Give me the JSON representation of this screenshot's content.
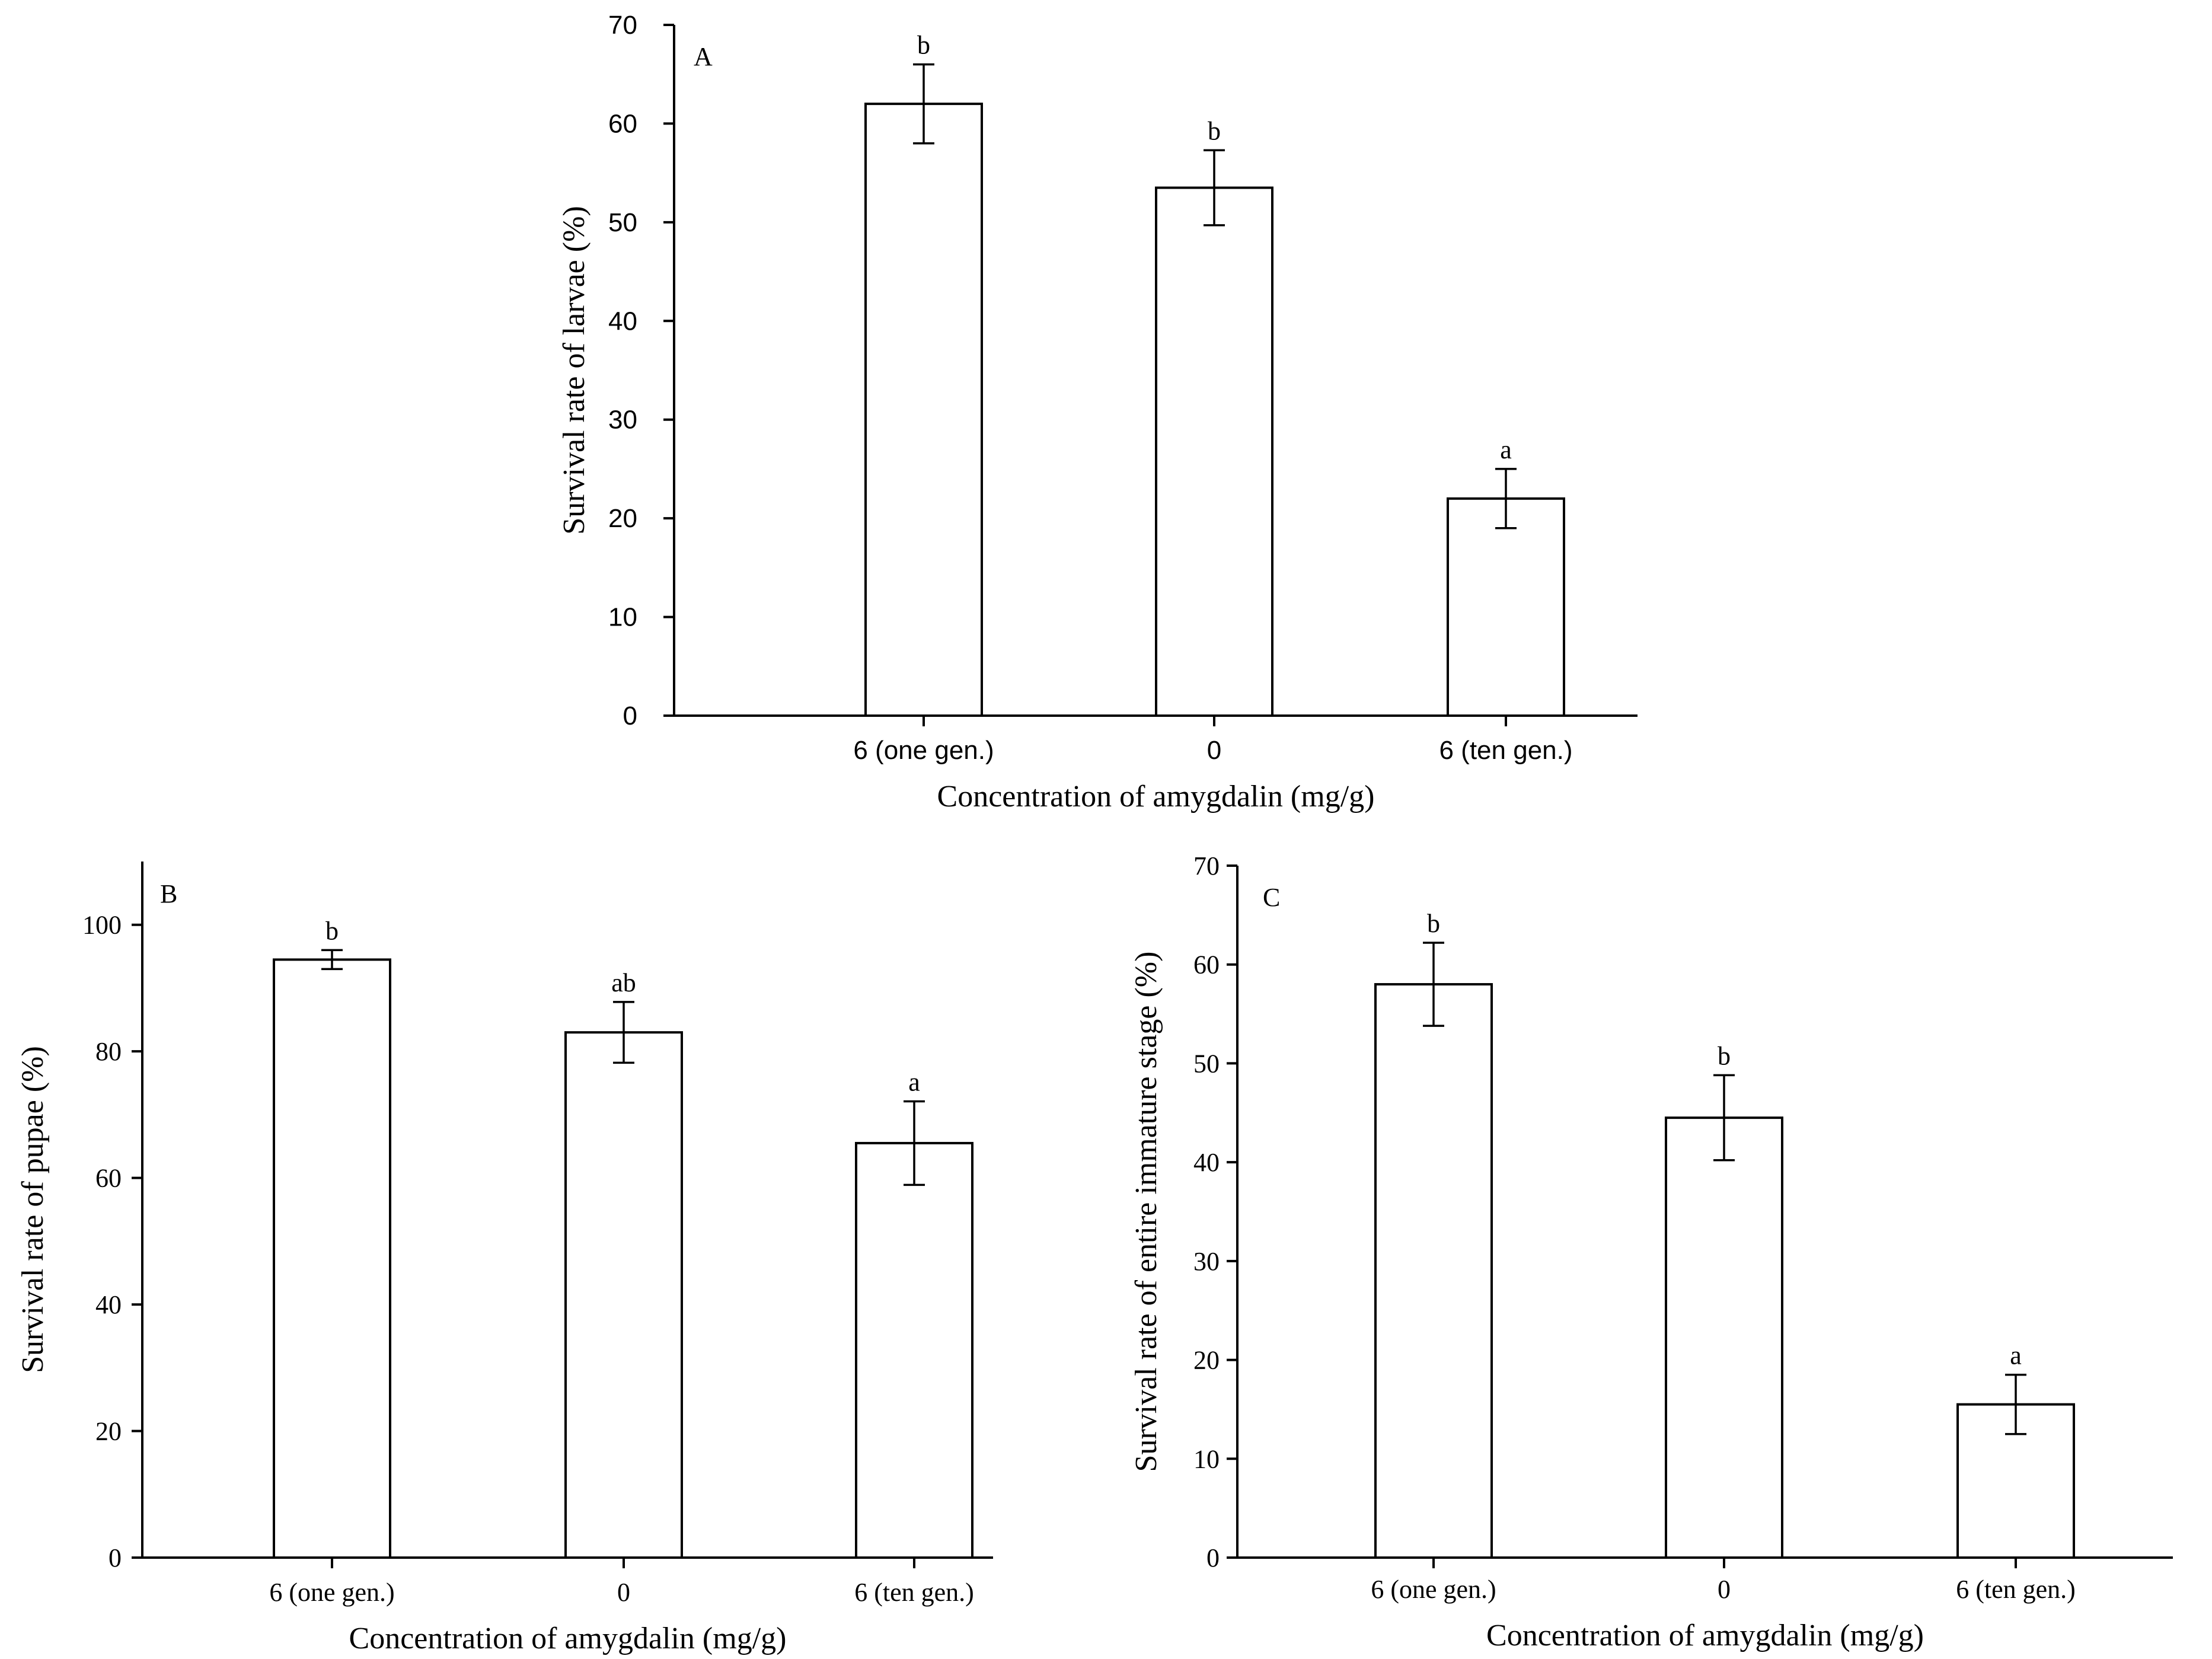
{
  "chart_data": [
    {
      "panel": "A",
      "type": "bar",
      "categories": [
        "6 (one gen.)",
        "0",
        "6 (ten gen.)"
      ],
      "values": [
        62,
        53.5,
        22
      ],
      "errors": [
        4,
        3.8,
        3
      ],
      "significance": [
        "b",
        "b",
        "a"
      ],
      "title": "",
      "xlabel": "Concentration of amygdalin (mg/g)",
      "ylabel": "Survival rate of larvae (%)",
      "ylim": [
        0,
        70
      ],
      "yticks": [
        0,
        10,
        20,
        30,
        40,
        50,
        60,
        70
      ],
      "grid": false
    },
    {
      "panel": "B",
      "type": "bar",
      "categories": [
        "6 (one gen.)",
        "0",
        "6 (ten gen.)"
      ],
      "values": [
        94.5,
        83,
        65.5
      ],
      "errors": [
        1.5,
        4.8,
        6.6
      ],
      "significance": [
        "b",
        "ab",
        "a"
      ],
      "title": "",
      "xlabel": "Concentration of amygdalin (mg/g)",
      "ylabel": "Survival rate of pupae (%)",
      "ylim": [
        0,
        110
      ],
      "yticks": [
        0,
        20,
        40,
        60,
        80,
        100
      ],
      "grid": false
    },
    {
      "panel": "C",
      "type": "bar",
      "categories": [
        "6 (one gen.)",
        "0",
        "6 (ten gen.)"
      ],
      "values": [
        58,
        44.5,
        15.5
      ],
      "errors": [
        4.2,
        4.3,
        3
      ],
      "significance": [
        "b",
        "b",
        "a"
      ],
      "title": "",
      "xlabel": "Concentration of amygdalin (mg/g)",
      "ylabel": "Survival rate of entire immature stage (%)",
      "ylim": [
        0,
        70
      ],
      "yticks": [
        0,
        10,
        20,
        30,
        40,
        50,
        60,
        70
      ],
      "grid": false
    }
  ]
}
